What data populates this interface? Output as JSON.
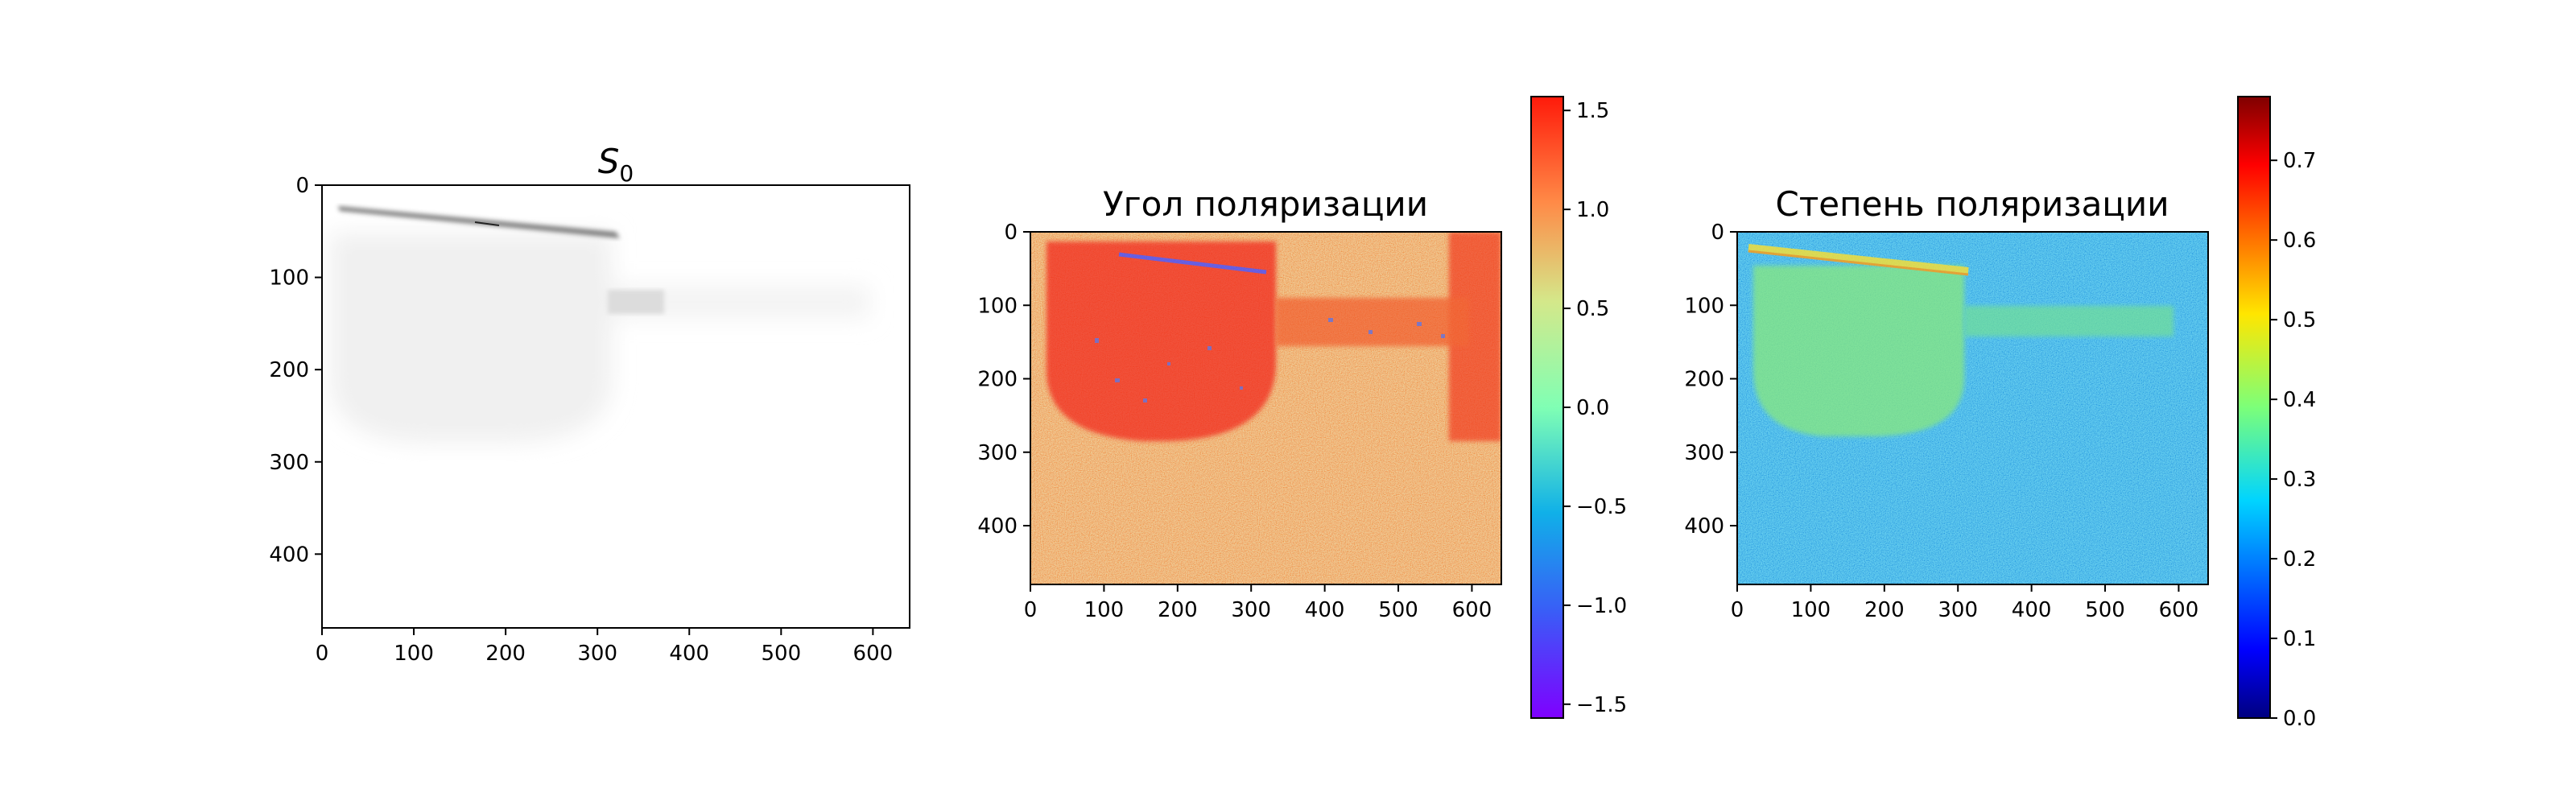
{
  "chart_data": [
    {
      "type": "heatmap",
      "title": "S",
      "title_subscript": "0",
      "colormap": "gray_r",
      "x_ticks": [
        0,
        100,
        200,
        300,
        400,
        500,
        600
      ],
      "y_ticks": [
        0,
        100,
        200,
        300,
        400
      ],
      "xlim": [
        0,
        640
      ],
      "ylim": [
        480,
        0
      ],
      "colorbar": false
    },
    {
      "type": "heatmap",
      "title": "Угол поляризации",
      "colormap": "rainbow",
      "x_ticks": [
        0,
        100,
        200,
        300,
        400,
        500,
        600
      ],
      "y_ticks": [
        0,
        100,
        200,
        300,
        400
      ],
      "xlim": [
        0,
        640
      ],
      "ylim": [
        480,
        0
      ],
      "colorbar": true,
      "colorbar_range": [
        -1.57,
        1.57
      ],
      "colorbar_ticks": [
        1.5,
        1.0,
        0.5,
        0.0,
        -0.5,
        -1.0,
        -1.5
      ],
      "colorbar_tick_labels": [
        "1.5",
        "1.0",
        "0.5",
        "0.0",
        "−0.5",
        "−1.0",
        "−1.5"
      ]
    },
    {
      "type": "heatmap",
      "title": "Степень поляризации",
      "colormap": "jet",
      "x_ticks": [
        0,
        100,
        200,
        300,
        400,
        500,
        600
      ],
      "y_ticks": [
        0,
        100,
        200,
        300,
        400
      ],
      "xlim": [
        0,
        640
      ],
      "ylim": [
        480,
        0
      ],
      "colorbar": true,
      "colorbar_range": [
        0.0,
        0.78
      ],
      "colorbar_ticks": [
        0.7,
        0.6,
        0.5,
        0.4,
        0.3,
        0.2,
        0.1,
        0.0
      ],
      "colorbar_tick_labels": [
        "0.7",
        "0.6",
        "0.5",
        "0.4",
        "0.3",
        "0.2",
        "0.1",
        "0.0"
      ]
    }
  ]
}
